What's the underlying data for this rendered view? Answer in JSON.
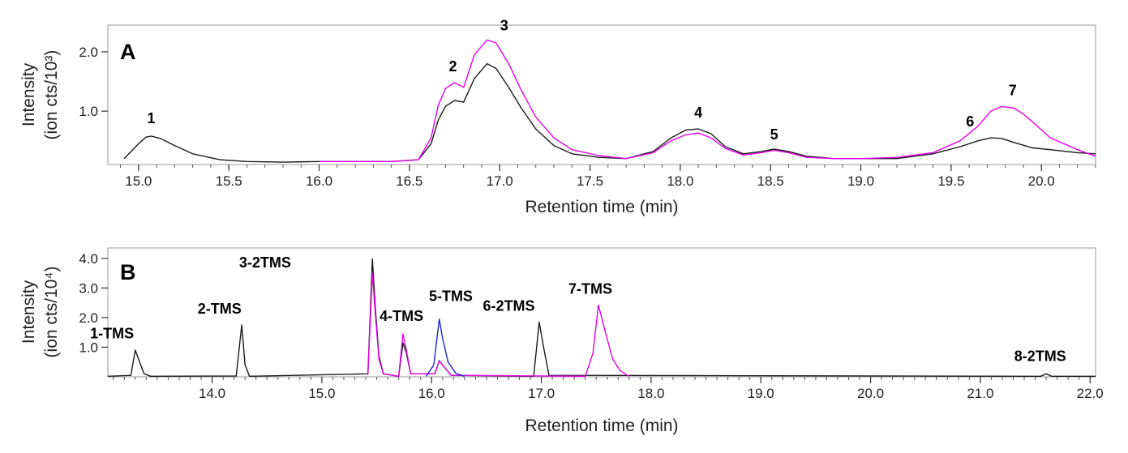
{
  "chart_data": [
    {
      "type": "line",
      "panel": "A",
      "xlabel": "Retention time (min)",
      "ylabel": [
        "Intensity",
        "(ion cts/10³)"
      ],
      "xlim": [
        14.83,
        20.3
      ],
      "ylim": [
        0.1,
        2.45
      ],
      "xticks": [
        15.0,
        15.5,
        16.0,
        16.5,
        17.0,
        17.5,
        18.0,
        18.5,
        19.0,
        19.5,
        20.0
      ],
      "xtick_labels": [
        "15.0",
        "15.5",
        "16.0",
        "16.5",
        "17.0",
        "17.5",
        "18.0",
        "18.5",
        "19.0",
        "19.5",
        "20.0"
      ],
      "yticks": [
        1.0,
        2.0
      ],
      "ytick_labels": [
        "1.0",
        "2.0"
      ],
      "series": [
        {
          "name": "black",
          "color": "#1a1a1a",
          "x": [
            14.92,
            15.0,
            15.04,
            15.07,
            15.12,
            15.2,
            15.3,
            15.45,
            15.6,
            15.8,
            16.0,
            16.2,
            16.4,
            16.55,
            16.62,
            16.66,
            16.7,
            16.75,
            16.8,
            16.86,
            16.93,
            16.98,
            17.05,
            17.12,
            17.2,
            17.3,
            17.4,
            17.55,
            17.7,
            17.85,
            17.95,
            18.03,
            18.1,
            18.17,
            18.25,
            18.35,
            18.45,
            18.52,
            18.6,
            18.7,
            18.85,
            19.0,
            19.2,
            19.4,
            19.55,
            19.65,
            19.72,
            19.78,
            19.85,
            19.95,
            20.05,
            20.2,
            20.3
          ],
          "y": [
            0.2,
            0.45,
            0.56,
            0.58,
            0.54,
            0.42,
            0.28,
            0.18,
            0.15,
            0.14,
            0.15,
            0.15,
            0.15,
            0.18,
            0.45,
            0.85,
            1.08,
            1.18,
            1.15,
            1.55,
            1.8,
            1.72,
            1.4,
            1.05,
            0.7,
            0.42,
            0.28,
            0.22,
            0.2,
            0.32,
            0.55,
            0.68,
            0.7,
            0.62,
            0.4,
            0.28,
            0.32,
            0.36,
            0.32,
            0.24,
            0.2,
            0.2,
            0.2,
            0.28,
            0.4,
            0.5,
            0.55,
            0.54,
            0.47,
            0.38,
            0.35,
            0.3,
            0.28
          ]
        },
        {
          "name": "magenta",
          "color": "#e600e6",
          "x": [
            16.0,
            16.2,
            16.4,
            16.55,
            16.62,
            16.66,
            16.7,
            16.75,
            16.8,
            16.86,
            16.93,
            16.98,
            17.05,
            17.12,
            17.2,
            17.3,
            17.4,
            17.55,
            17.7,
            17.85,
            17.95,
            18.03,
            18.1,
            18.17,
            18.25,
            18.35,
            18.45,
            18.52,
            18.6,
            18.7,
            18.85,
            19.0,
            19.2,
            19.4,
            19.55,
            19.65,
            19.72,
            19.78,
            19.85,
            19.9,
            19.95,
            20.05,
            20.2,
            20.3
          ],
          "y": [
            0.15,
            0.15,
            0.15,
            0.18,
            0.55,
            1.1,
            1.38,
            1.48,
            1.4,
            1.95,
            2.2,
            2.15,
            1.8,
            1.35,
            0.9,
            0.55,
            0.35,
            0.25,
            0.2,
            0.3,
            0.5,
            0.6,
            0.63,
            0.55,
            0.37,
            0.26,
            0.3,
            0.34,
            0.3,
            0.22,
            0.2,
            0.2,
            0.22,
            0.3,
            0.5,
            0.75,
            1.0,
            1.08,
            1.05,
            0.95,
            0.82,
            0.55,
            0.35,
            0.24
          ]
        }
      ],
      "peak_labels": [
        {
          "text": "1",
          "x": 15.07,
          "y": 0.58
        },
        {
          "text": "2",
          "x": 16.75,
          "y": 1.48
        },
        {
          "text": "3",
          "x": 16.98,
          "y": 2.2
        },
        {
          "text": "4",
          "x": 18.1,
          "y": 0.7
        },
        {
          "text": "5",
          "x": 18.52,
          "y": 0.36
        },
        {
          "text": "6",
          "x": 19.65,
          "y": 0.55
        },
        {
          "text": "7",
          "x": 19.85,
          "y": 1.08
        }
      ]
    },
    {
      "type": "line",
      "panel": "B",
      "xlabel": "Retention time (min)",
      "ylabel": [
        "Intensity",
        "(ion cts/10⁴)"
      ],
      "xlim": [
        13.05,
        22.05
      ],
      "ylim": [
        0.0,
        4.35
      ],
      "xticks": [
        14.0,
        15.0,
        16.0,
        17.0,
        18.0,
        19.0,
        20.0,
        21.0,
        22.0
      ],
      "xtick_labels": [
        "14.0",
        "15.0",
        "16.0",
        "17.0",
        "18.0",
        "19.0",
        "20.0",
        "21.0",
        "22.0"
      ],
      "yticks": [
        1.0,
        2.0,
        3.0,
        4.0
      ],
      "ytick_labels": [
        "1.0",
        "2.0",
        "3.0",
        "4.0"
      ],
      "series": [
        {
          "name": "black",
          "color": "#1a1a1a",
          "x": [
            13.05,
            13.26,
            13.3,
            13.34,
            13.38,
            13.44,
            14.22,
            14.27,
            14.3,
            14.34,
            15.42,
            15.46,
            15.49,
            15.52,
            15.56,
            15.7,
            15.74,
            15.77,
            15.81,
            16.03,
            16.07,
            16.11,
            16.18,
            16.93,
            16.98,
            17.02,
            17.07,
            21.55,
            21.6,
            21.65,
            22.05
          ],
          "y": [
            0.02,
            0.05,
            0.9,
            0.5,
            0.1,
            0.02,
            0.03,
            1.75,
            0.4,
            0.02,
            0.1,
            3.98,
            2.2,
            0.7,
            0.1,
            0.02,
            1.15,
            0.8,
            0.1,
            0.1,
            0.55,
            0.35,
            0.05,
            0.02,
            1.85,
            1.0,
            0.05,
            0.02,
            0.1,
            0.02,
            0.02
          ]
        },
        {
          "name": "magenta",
          "color": "#e600e6",
          "x": [
            15.42,
            15.46,
            15.49,
            15.52,
            15.56,
            15.7,
            15.74,
            15.77,
            15.81,
            16.03,
            16.07,
            16.11,
            16.18,
            17.4,
            17.47,
            17.52,
            17.58,
            17.65,
            17.72,
            17.8
          ],
          "y": [
            0.1,
            3.5,
            2.0,
            0.6,
            0.1,
            0.02,
            1.45,
            0.9,
            0.1,
            0.1,
            0.55,
            0.35,
            0.05,
            0.02,
            0.8,
            2.42,
            1.55,
            0.6,
            0.2,
            0.02
          ]
        },
        {
          "name": "blue",
          "color": "#2222dd",
          "x": [
            15.95,
            16.02,
            16.07,
            16.1,
            16.15,
            16.22,
            16.3
          ],
          "y": [
            0.02,
            0.4,
            1.95,
            1.3,
            0.5,
            0.12,
            0.02
          ]
        }
      ],
      "peak_labels": [
        {
          "text": "1-TMS",
          "x": 13.31,
          "y": 0.92
        },
        {
          "text": "2-TMS",
          "x": 14.26,
          "y": 1.75
        },
        {
          "text": "3-2TMS",
          "x": 15.0,
          "y": 3.7
        },
        {
          "text": "4-TMS",
          "x": 15.77,
          "y": 1.45
        },
        {
          "text": "5-TMS",
          "x": 16.19,
          "y": 1.95
        },
        {
          "text": "6-2TMS",
          "x": 17.0,
          "y": 1.85
        },
        {
          "text": "7-TMS",
          "x": 17.55,
          "y": 2.42
        },
        {
          "text": "8-2TMS",
          "x": 21.62,
          "y": 0.1
        }
      ]
    }
  ]
}
